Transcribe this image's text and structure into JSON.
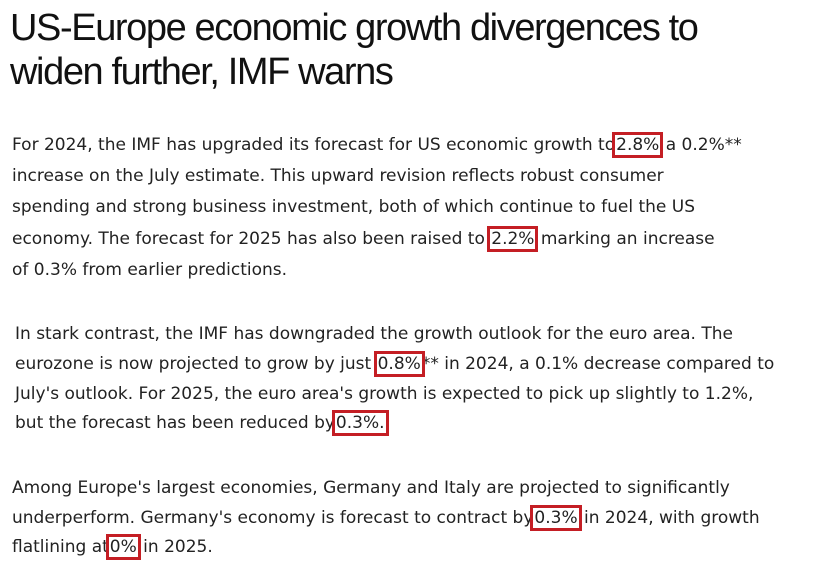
{
  "headline": {
    "line1": "US-Europe economic growth divergences to",
    "line2": "widen further, IMF warns"
  },
  "paragraph1": {
    "l1_a": "For 2024, the IMF has upgraded its forecast for US economic growth to",
    "l1_hl": "2.8%",
    "l1_b": " a 0.2%**",
    "l2": "increase on the July estimate. This upward revision reflects robust consumer",
    "l3": "spending and strong business investment, both of which continue to fuel the US",
    "l4_a": "economy. The forecast for 2025 has also been raised to ",
    "l4_hl": "2.2%",
    "l4_b": " marking an increase",
    "l5": "of 0.3% from earlier predictions."
  },
  "paragraph2": {
    "l1": "In stark contrast, the IMF has downgraded the growth outlook for the euro area. The",
    "l2_a": "eurozone is now projected to grow by just ",
    "l2_hl": "0.8%",
    "l2_b": "** in 2024, a 0.1% decrease compared to",
    "l3": "July's outlook. For 2025, the euro area's growth is expected to pick up slightly to 1.2%,",
    "l4_a": "but the forecast has been reduced by",
    "l4_hl": "0.3%."
  },
  "paragraph3": {
    "l1": "Among Europe's largest economies, Germany and Italy are projected to significantly",
    "l2_a": "underperform. Germany's economy is forecast to contract by",
    "l2_hl": "0.3%",
    "l2_b": " in 2024, with growth",
    "l3_a": "flatlining at",
    "l3_hl": "0%",
    "l3_b": " in 2025."
  },
  "colors": {
    "highlight_box": "#c41e24",
    "text": "#222222",
    "background": "#ffffff"
  }
}
